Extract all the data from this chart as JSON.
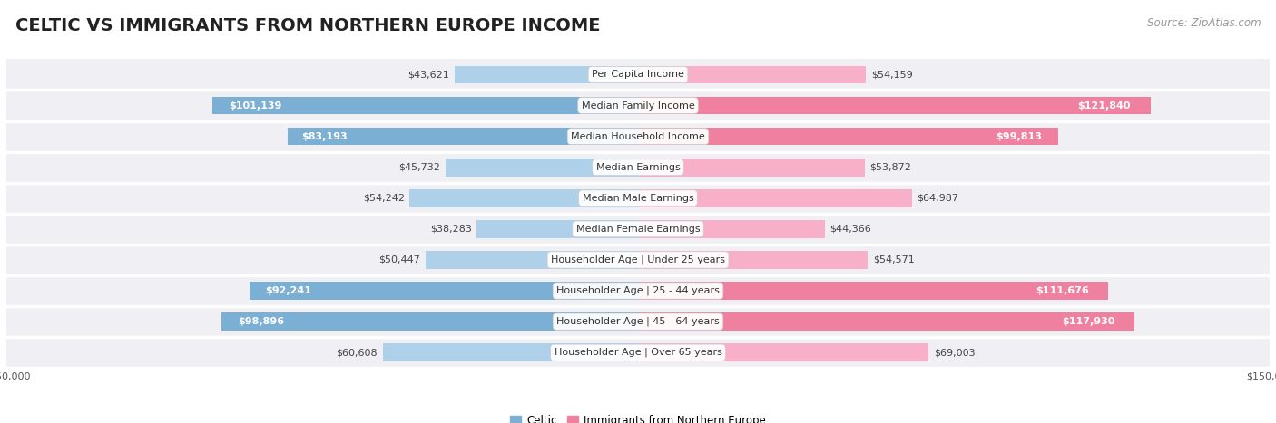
{
  "title": "CELTIC VS IMMIGRANTS FROM NORTHERN EUROPE INCOME",
  "source": "Source: ZipAtlas.com",
  "categories": [
    "Per Capita Income",
    "Median Family Income",
    "Median Household Income",
    "Median Earnings",
    "Median Male Earnings",
    "Median Female Earnings",
    "Householder Age | Under 25 years",
    "Householder Age | 25 - 44 years",
    "Householder Age | 45 - 64 years",
    "Householder Age | Over 65 years"
  ],
  "celtic_values": [
    43621,
    101139,
    83193,
    45732,
    54242,
    38283,
    50447,
    92241,
    98896,
    60608
  ],
  "immigrant_values": [
    54159,
    121840,
    99813,
    53872,
    64987,
    44366,
    54571,
    111676,
    117930,
    69003
  ],
  "celtic_labels": [
    "$43,621",
    "$101,139",
    "$83,193",
    "$45,732",
    "$54,242",
    "$38,283",
    "$50,447",
    "$92,241",
    "$98,896",
    "$60,608"
  ],
  "immigrant_labels": [
    "$54,159",
    "$121,840",
    "$99,813",
    "$53,872",
    "$64,987",
    "$44,366",
    "$54,571",
    "$111,676",
    "$117,930",
    "$69,003"
  ],
  "celtic_color": "#7bafd4",
  "immigrant_color": "#f080a0",
  "celtic_color_light": "#aed0e8",
  "immigrant_color_light": "#f8b0c8",
  "max_value": 150000,
  "bar_height": 0.58,
  "row_bg_color": "#f0f0f4",
  "row_sep_color": "#ffffff",
  "legend_celtic": "Celtic",
  "legend_immigrant": "Immigrants from Northern Europe",
  "title_fontsize": 14,
  "source_fontsize": 8.5,
  "label_fontsize": 8,
  "category_fontsize": 8,
  "axis_fontsize": 8,
  "inside_label_threshold": 75000
}
